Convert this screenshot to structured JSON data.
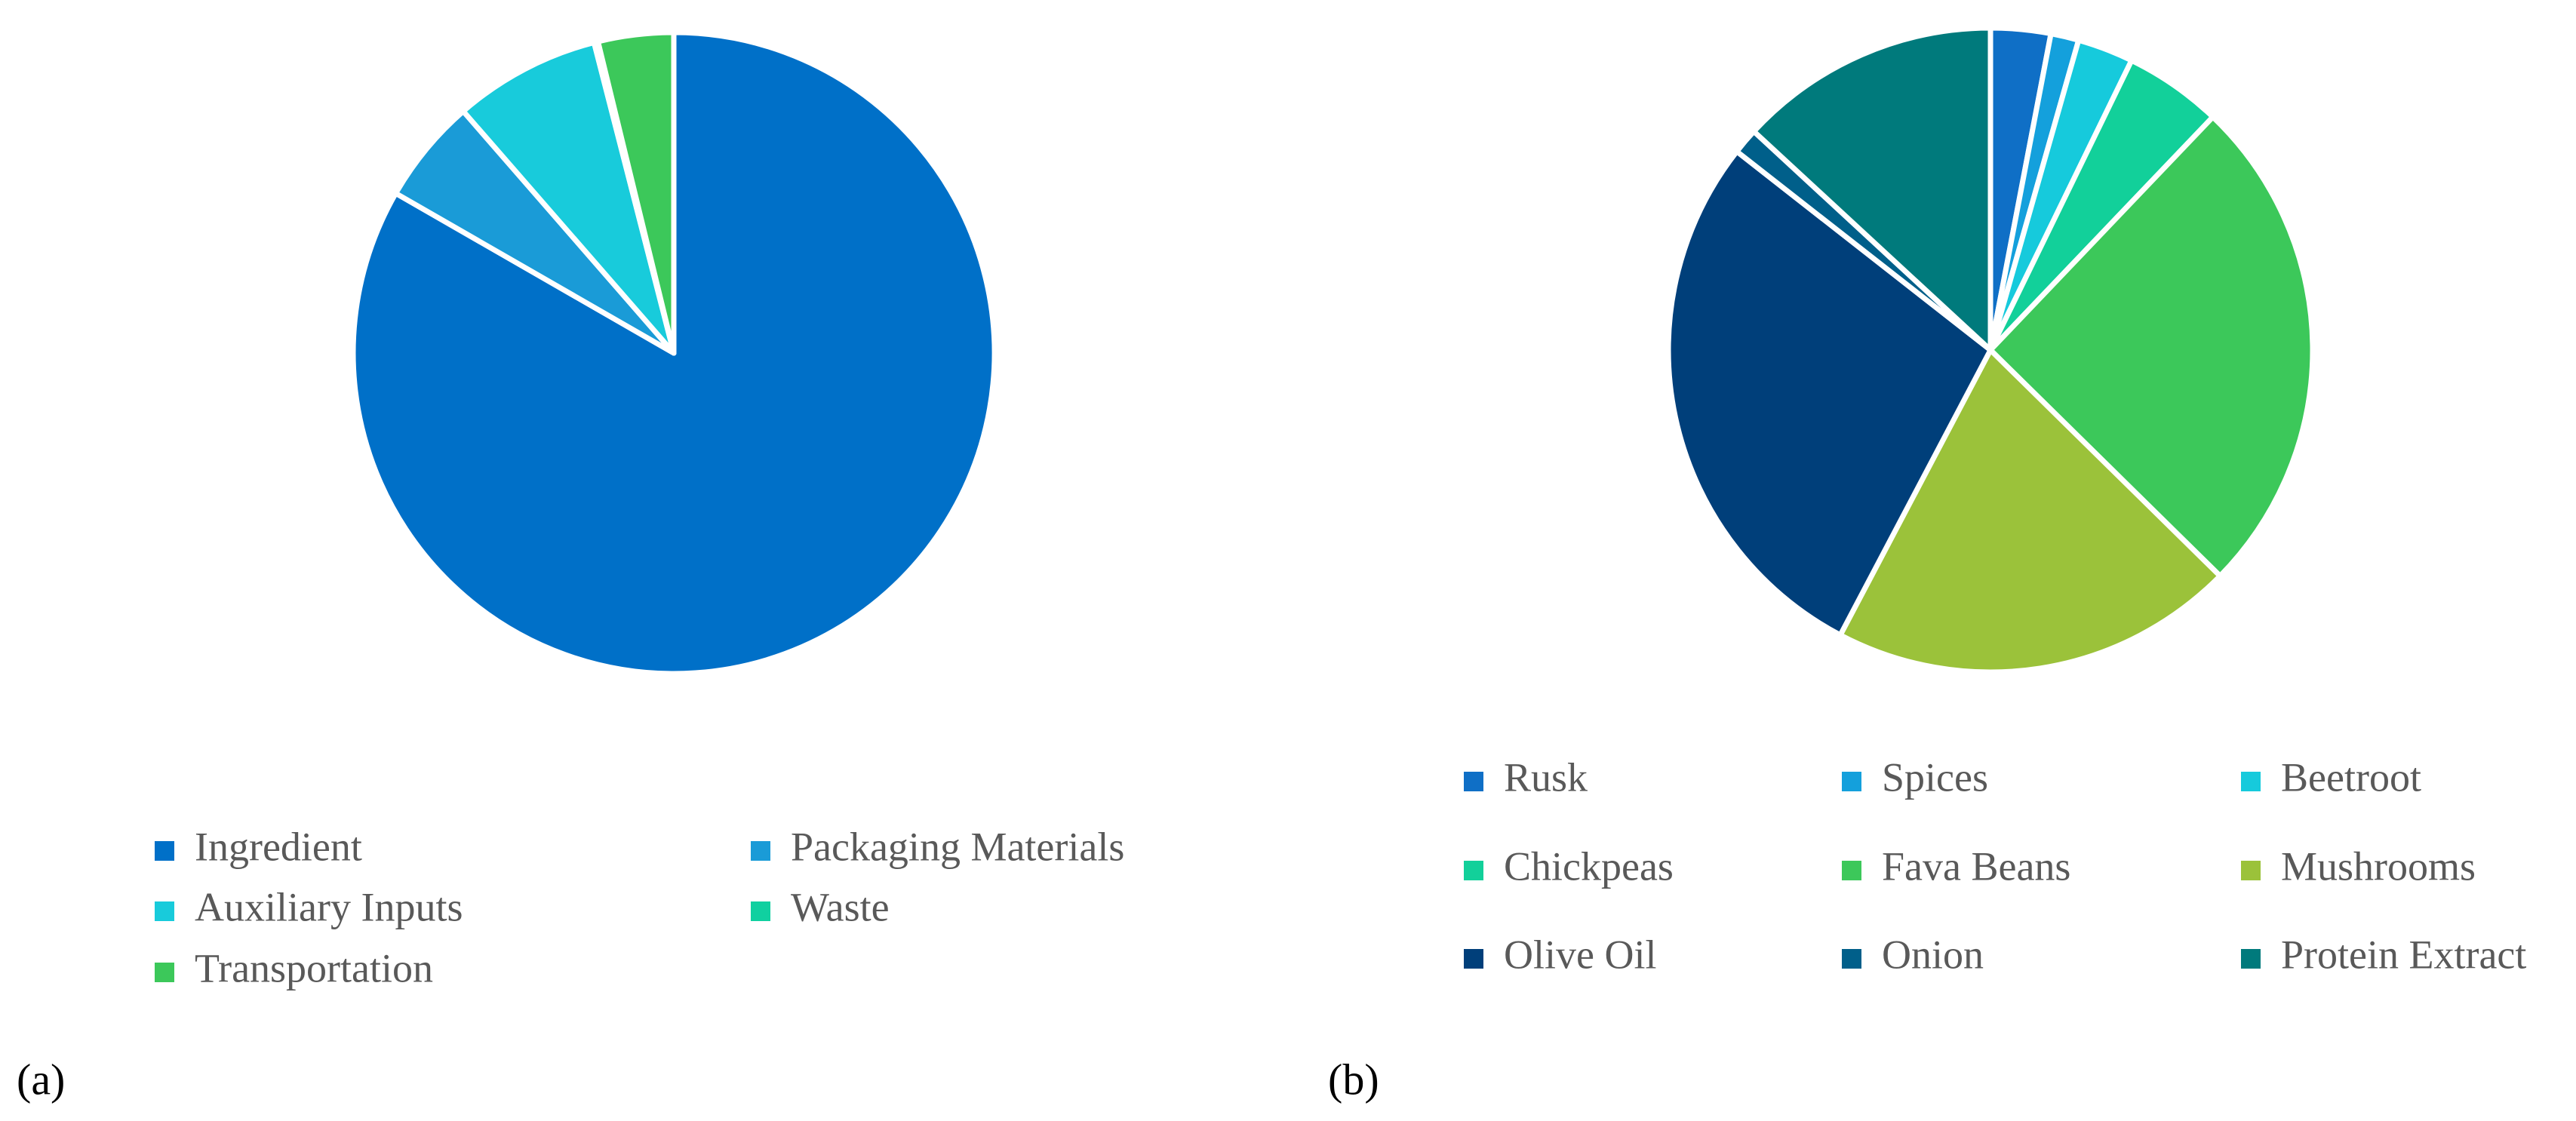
{
  "chart_data": [
    {
      "type": "pie",
      "panel_label": "(a)",
      "categories": [
        "Ingredient",
        "Packaging Materials",
        "Auxiliary Inputs",
        "Waste",
        "Transportation"
      ],
      "values": [
        83.3,
        5.3,
        7.4,
        0.2,
        3.8
      ],
      "colors": [
        "#0070c8",
        "#1a9bd7",
        "#18cbdb",
        "#10d0a0",
        "#3cc85a"
      ],
      "legend": "bottom"
    },
    {
      "type": "pie",
      "panel_label": "(b)",
      "categories": [
        "Rusk",
        "Spices",
        "Beetroot",
        "Chickpeas",
        "Fava Beans",
        "Mushrooms",
        "Olive Oil",
        "Onion",
        "Protein Extract"
      ],
      "values": [
        3.0,
        1.4,
        2.8,
        4.9,
        25.2,
        20.3,
        27.8,
        1.3,
        13.1
      ],
      "colors": [
        "#0f6fc6",
        "#14a0dc",
        "#16cadc",
        "#12d09a",
        "#3cc85a",
        "#9bc23a",
        "#003f7a",
        "#005f8a",
        "#007a7c"
      ],
      "legend": "bottom"
    }
  ]
}
